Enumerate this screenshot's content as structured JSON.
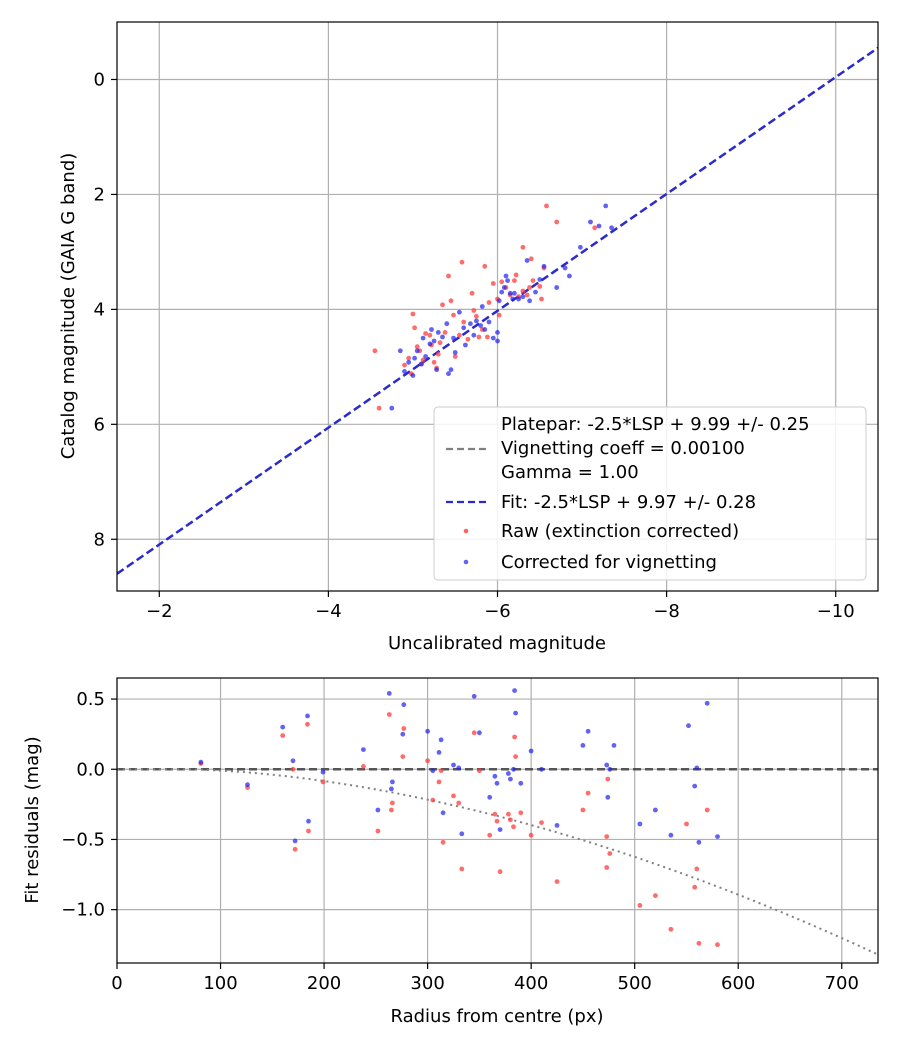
{
  "chart_data": [
    {
      "type": "scatter",
      "xlabel": "Uncalibrated magnitude",
      "ylabel": "Catalog magnitude (GAIA G band)",
      "xlim": [
        -1.5,
        -10.5
      ],
      "ylim": [
        8.9,
        -1.0
      ],
      "x_inverted": true,
      "y_inverted": true,
      "grid": true,
      "legend_position": "lower right",
      "xticks": [
        -2,
        -4,
        -6,
        -8,
        -10
      ],
      "xtick_labels": [
        "−2",
        "−4",
        "−6",
        "−8",
        "−10"
      ],
      "yticks": [
        0,
        2,
        4,
        6,
        8
      ],
      "ytick_labels": [
        "0",
        "2",
        "4",
        "6",
        "8"
      ],
      "legend": {
        "platepar_line1": "Platepar: -2.5*LSP + 9.99 +/- 0.25",
        "platepar_line2": "Vignetting coeff = 0.00100",
        "platepar_line3": "Gamma = 1.00",
        "fit": "Fit: -2.5*LSP + 9.97 +/- 0.28",
        "raw": "Raw (extinction corrected)",
        "corrected": "Corrected for vignetting"
      },
      "lines": [
        {
          "name": "Platepar",
          "color": "#808080",
          "style": "dashed",
          "x": [
            -1.5,
            -10.5
          ],
          "y": [
            8.6,
            -0.55
          ]
        },
        {
          "name": "Fit",
          "color": "#2a2ad0",
          "style": "dashed",
          "x": [
            -1.5,
            -10.5
          ],
          "y": [
            8.6,
            -0.55
          ]
        }
      ],
      "series": [
        {
          "name": "Raw (extinction corrected)",
          "color": "#ff3b3b",
          "points": [
            [
              -4.55,
              4.72
            ],
            [
              -4.6,
              5.72
            ],
            [
              -4.9,
              4.97
            ],
            [
              -4.95,
              4.85
            ],
            [
              -4.98,
              5.12
            ],
            [
              -5.0,
              4.08
            ],
            [
              -5.02,
              4.32
            ],
            [
              -5.05,
              4.65
            ],
            [
              -5.08,
              4.72
            ],
            [
              -5.1,
              4.95
            ],
            [
              -5.12,
              4.88
            ],
            [
              -5.15,
              4.42
            ],
            [
              -5.2,
              4.45
            ],
            [
              -5.22,
              4.62
            ],
            [
              -5.25,
              4.92
            ],
            [
              -5.28,
              5.02
            ],
            [
              -5.3,
              4.78
            ],
            [
              -5.32,
              4.58
            ],
            [
              -5.35,
              3.92
            ],
            [
              -5.38,
              4.4
            ],
            [
              -5.42,
              3.42
            ],
            [
              -5.45,
              3.85
            ],
            [
              -5.48,
              4.1
            ],
            [
              -5.5,
              4.82
            ],
            [
              -5.55,
              4.45
            ],
            [
              -5.58,
              3.18
            ],
            [
              -5.6,
              4.22
            ],
            [
              -5.65,
              4.52
            ],
            [
              -5.7,
              3.72
            ],
            [
              -5.72,
              4.02
            ],
            [
              -5.75,
              4.12
            ],
            [
              -5.78,
              4.48
            ],
            [
              -5.82,
              4.35
            ],
            [
              -5.85,
              3.25
            ],
            [
              -5.88,
              4.48
            ],
            [
              -5.9,
              3.88
            ],
            [
              -5.95,
              3.55
            ],
            [
              -6.0,
              3.82
            ],
            [
              -6.02,
              4.1
            ],
            [
              -6.05,
              3.52
            ],
            [
              -6.1,
              3.62
            ],
            [
              -6.15,
              3.75
            ],
            [
              -6.2,
              3.5
            ],
            [
              -6.22,
              3.4
            ],
            [
              -6.25,
              3.78
            ],
            [
              -6.3,
              3.68
            ],
            [
              -6.3,
              2.92
            ],
            [
              -6.35,
              3.75
            ],
            [
              -6.38,
              3.62
            ],
            [
              -6.4,
              3.12
            ],
            [
              -6.42,
              3.5
            ],
            [
              -6.5,
              3.6
            ],
            [
              -6.52,
              3.82
            ],
            [
              -6.55,
              3.28
            ],
            [
              -6.58,
              2.2
            ],
            [
              -6.7,
              2.48
            ],
            [
              -7.15,
              2.58
            ]
          ]
        },
        {
          "name": "Corrected for vignetting",
          "color": "#2020ee",
          "points": [
            [
              -4.75,
              5.72
            ],
            [
              -4.85,
              4.72
            ],
            [
              -4.9,
              5.08
            ],
            [
              -4.95,
              4.92
            ],
            [
              -5.0,
              5.15
            ],
            [
              -5.02,
              4.85
            ],
            [
              -5.05,
              4.72
            ],
            [
              -5.1,
              4.95
            ],
            [
              -5.12,
              4.5
            ],
            [
              -5.15,
              4.82
            ],
            [
              -5.2,
              4.6
            ],
            [
              -5.22,
              4.35
            ],
            [
              -5.25,
              4.55
            ],
            [
              -5.28,
              5.05
            ],
            [
              -5.3,
              4.4
            ],
            [
              -5.35,
              4.48
            ],
            [
              -5.4,
              4.25
            ],
            [
              -5.42,
              5.12
            ],
            [
              -5.45,
              5.05
            ],
            [
              -5.48,
              4.5
            ],
            [
              -5.5,
              4.75
            ],
            [
              -5.55,
              4.05
            ],
            [
              -5.6,
              4.32
            ],
            [
              -5.62,
              4.62
            ],
            [
              -5.68,
              4.25
            ],
            [
              -5.72,
              4.45
            ],
            [
              -5.75,
              4.2
            ],
            [
              -5.8,
              4.28
            ],
            [
              -5.82,
              3.95
            ],
            [
              -5.85,
              4.35
            ],
            [
              -5.9,
              4.22
            ],
            [
              -5.95,
              4.5
            ],
            [
              -6.0,
              4.55
            ],
            [
              -6.0,
              4.4
            ],
            [
              -6.02,
              3.85
            ],
            [
              -6.05,
              3.7
            ],
            [
              -6.08,
              3.62
            ],
            [
              -6.1,
              3.42
            ],
            [
              -6.12,
              3.5
            ],
            [
              -6.15,
              3.72
            ],
            [
              -6.18,
              3.82
            ],
            [
              -6.2,
              3.72
            ],
            [
              -6.25,
              3.82
            ],
            [
              -6.3,
              3.78
            ],
            [
              -6.35,
              3.15
            ],
            [
              -6.38,
              3.85
            ],
            [
              -6.45,
              3.7
            ],
            [
              -6.5,
              3.48
            ],
            [
              -6.55,
              3.25
            ],
            [
              -6.7,
              3.62
            ],
            [
              -6.8,
              3.28
            ],
            [
              -6.85,
              3.42
            ],
            [
              -6.98,
              2.92
            ],
            [
              -7.1,
              2.48
            ],
            [
              -7.2,
              2.55
            ],
            [
              -7.28,
              2.2
            ],
            [
              -7.35,
              2.58
            ]
          ]
        }
      ]
    },
    {
      "type": "scatter",
      "xlabel": "Radius from centre (px)",
      "ylabel": "Fit residuals (mag)",
      "xlim": [
        0,
        735
      ],
      "ylim": [
        -1.38,
        0.65
      ],
      "grid": true,
      "xticks": [
        0,
        100,
        200,
        300,
        400,
        500,
        600,
        700
      ],
      "xtick_labels": [
        "0",
        "100",
        "200",
        "300",
        "400",
        "500",
        "600",
        "700"
      ],
      "yticks": [
        0.5,
        0.0,
        -0.5,
        -1.0
      ],
      "ytick_labels": [
        "0.5",
        "0.0",
        "−0.5",
        "−1.0"
      ],
      "lines": [
        {
          "name": "zero",
          "color": "#555555",
          "style": "dashed",
          "x": [
            0,
            735
          ],
          "y": [
            0,
            0
          ]
        },
        {
          "name": "vignetting",
          "color": "#808080",
          "style": "dotted",
          "type": "curve"
        }
      ],
      "series": [
        {
          "name": "Raw (extinction corrected)",
          "color": "#ff3b3b",
          "points": [
            [
              81,
              0.04
            ],
            [
              126,
              -0.13
            ],
            [
              160,
              0.24
            ],
            [
              170,
              0.0
            ],
            [
              172,
              -0.57
            ],
            [
              184,
              0.32
            ],
            [
              185,
              -0.44
            ],
            [
              199,
              -0.09
            ],
            [
              238,
              0.02
            ],
            [
              252,
              -0.44
            ],
            [
              263,
              0.39
            ],
            [
              265,
              -0.29
            ],
            [
              266,
              -0.24
            ],
            [
              276,
              0.09
            ],
            [
              277,
              0.29
            ],
            [
              300,
              0.06
            ],
            [
              305,
              -0.22
            ],
            [
              311,
              -0.09
            ],
            [
              313,
              -0.01
            ],
            [
              315,
              -0.52
            ],
            [
              325,
              -0.19
            ],
            [
              330,
              -0.24
            ],
            [
              333,
              -0.71
            ],
            [
              345,
              0.26
            ],
            [
              350,
              -0.01
            ],
            [
              360,
              -0.47
            ],
            [
              365,
              -0.32
            ],
            [
              367,
              -0.37
            ],
            [
              370,
              -0.73
            ],
            [
              378,
              -0.32
            ],
            [
              380,
              -0.36
            ],
            [
              383,
              -0.41
            ],
            [
              384,
              0.23
            ],
            [
              385,
              0.09
            ],
            [
              390,
              -0.31
            ],
            [
              400,
              -0.47
            ],
            [
              410,
              -0.38
            ],
            [
              425,
              -0.8
            ],
            [
              450,
              -0.29
            ],
            [
              455,
              -0.17
            ],
            [
              473,
              -0.48
            ],
            [
              474,
              -0.07
            ],
            [
              476,
              -0.6
            ],
            [
              473,
              -0.7
            ],
            [
              505,
              -0.97
            ],
            [
              520,
              -0.9
            ],
            [
              535,
              -1.14
            ],
            [
              550,
              -0.39
            ],
            [
              558,
              -0.84
            ],
            [
              560,
              -0.71
            ],
            [
              562,
              -1.24
            ],
            [
              570,
              -0.29
            ],
            [
              580,
              -1.25
            ]
          ]
        },
        {
          "name": "Corrected for vignetting",
          "color": "#2020ee",
          "points": [
            [
              81,
              0.05
            ],
            [
              126,
              -0.11
            ],
            [
              160,
              0.3
            ],
            [
              170,
              0.06
            ],
            [
              172,
              -0.51
            ],
            [
              184,
              0.38
            ],
            [
              185,
              -0.37
            ],
            [
              199,
              -0.02
            ],
            [
              238,
              0.14
            ],
            [
              252,
              -0.29
            ],
            [
              263,
              0.54
            ],
            [
              265,
              -0.14
            ],
            [
              266,
              -0.09
            ],
            [
              276,
              0.25
            ],
            [
              277,
              0.46
            ],
            [
              300,
              0.27
            ],
            [
              305,
              -0.01
            ],
            [
              311,
              0.12
            ],
            [
              313,
              0.21
            ],
            [
              315,
              -0.31
            ],
            [
              325,
              0.03
            ],
            [
              330,
              0.01
            ],
            [
              333,
              -0.46
            ],
            [
              345,
              0.52
            ],
            [
              350,
              0.26
            ],
            [
              360,
              -0.2
            ],
            [
              365,
              -0.05
            ],
            [
              367,
              -0.1
            ],
            [
              370,
              -0.43
            ],
            [
              378,
              -0.03
            ],
            [
              380,
              -0.07
            ],
            [
              383,
              0.0
            ],
            [
              384,
              0.56
            ],
            [
              385,
              0.4
            ],
            [
              390,
              -0.1
            ],
            [
              400,
              0.13
            ],
            [
              410,
              0.0
            ],
            [
              425,
              -0.4
            ],
            [
              450,
              0.17
            ],
            [
              455,
              0.27
            ],
            [
              473,
              0.03
            ],
            [
              474,
              -0.2
            ],
            [
              476,
              0.0
            ],
            [
              480,
              0.17
            ],
            [
              505,
              -0.39
            ],
            [
              520,
              -0.29
            ],
            [
              535,
              -0.47
            ],
            [
              552,
              0.31
            ],
            [
              558,
              -0.12
            ],
            [
              560,
              0.01
            ],
            [
              562,
              -0.52
            ],
            [
              570,
              0.47
            ],
            [
              580,
              -0.48
            ]
          ]
        }
      ]
    }
  ]
}
